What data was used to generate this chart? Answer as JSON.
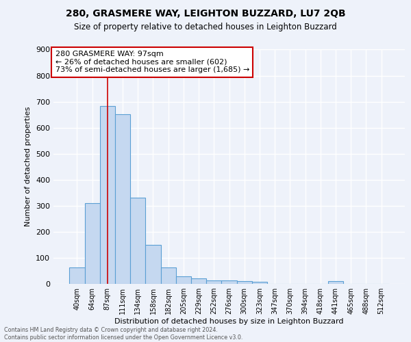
{
  "title1": "280, GRASMERE WAY, LEIGHTON BUZZARD, LU7 2QB",
  "title2": "Size of property relative to detached houses in Leighton Buzzard",
  "xlabel": "Distribution of detached houses by size in Leighton Buzzard",
  "ylabel": "Number of detached properties",
  "footnote": "Contains HM Land Registry data © Crown copyright and database right 2024.\nContains public sector information licensed under the Open Government Licence v3.0.",
  "bin_labels": [
    "40sqm",
    "64sqm",
    "87sqm",
    "111sqm",
    "134sqm",
    "158sqm",
    "182sqm",
    "205sqm",
    "229sqm",
    "252sqm",
    "276sqm",
    "300sqm",
    "323sqm",
    "347sqm",
    "370sqm",
    "394sqm",
    "418sqm",
    "441sqm",
    "465sqm",
    "488sqm",
    "512sqm"
  ],
  "bar_heights": [
    63,
    310,
    682,
    651,
    330,
    151,
    62,
    30,
    20,
    12,
    12,
    10,
    8,
    0,
    0,
    0,
    0,
    10,
    0,
    0,
    0
  ],
  "bar_color": "#c5d8f0",
  "bar_edge_color": "#5a9fd4",
  "vline_x": 2,
  "vline_color": "#cc0000",
  "annotation_text": "280 GRASMERE WAY: 97sqm\n← 26% of detached houses are smaller (602)\n73% of semi-detached houses are larger (1,685) →",
  "annotation_box_color": "#cc0000",
  "ylim": [
    0,
    900
  ],
  "yticks": [
    0,
    100,
    200,
    300,
    400,
    500,
    600,
    700,
    800,
    900
  ],
  "background_color": "#eef2fa",
  "grid_color": "#ffffff"
}
